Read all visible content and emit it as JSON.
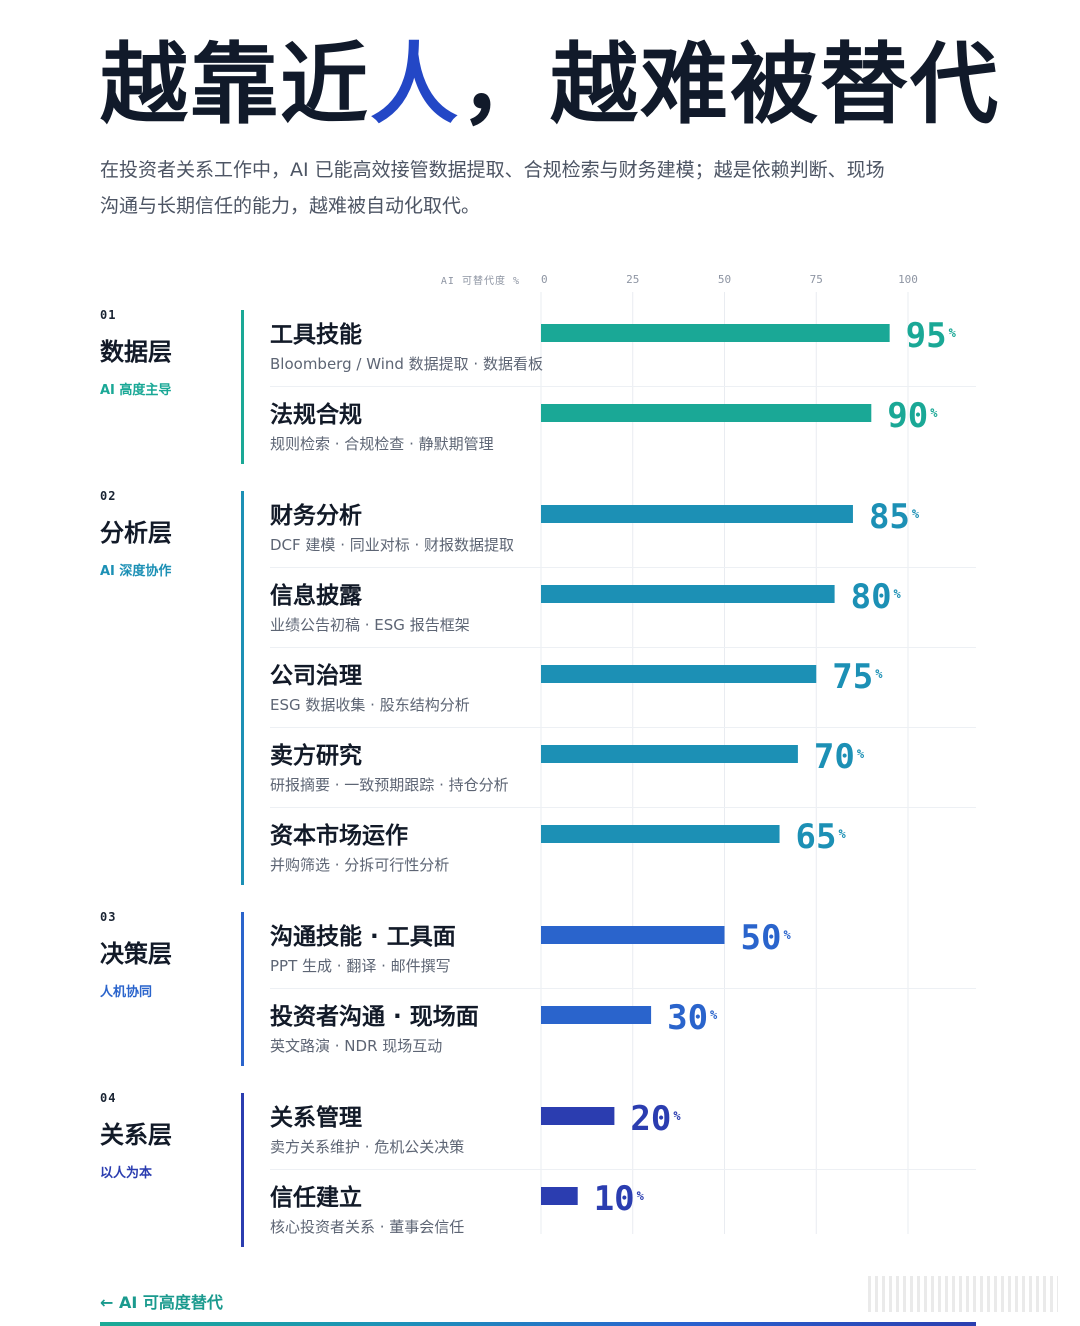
{
  "header": {
    "title_prefix": "越靠近",
    "title_highlight": "人",
    "title_suffix": "，越难被替代",
    "subtitle": "在投资者关系工作中，AI 已能高效接管数据提取、合规检索与财务建模；越是依赖判断、现场沟通与长期信任的能力，越难被自动化取代。"
  },
  "chart_data": {
    "type": "bar",
    "orientation": "horizontal",
    "axis_label": "AI 可替代度 %",
    "xlim": [
      0,
      100
    ],
    "ticks": [
      0,
      25,
      50,
      75,
      100
    ],
    "value_suffix": "%",
    "grid": true,
    "tiers": [
      {
        "num": "01",
        "name": "数据层",
        "tag": "AI 高度主导",
        "color": "#1aa896"
      },
      {
        "num": "02",
        "name": "分析层",
        "tag": "AI 深度协作",
        "color": "#1c90b5"
      },
      {
        "num": "03",
        "name": "决策层",
        "tag": "人机协同",
        "color": "#2a64cc"
      },
      {
        "num": "04",
        "name": "关系层",
        "tag": "以人为本",
        "color": "#2b3db0"
      }
    ],
    "rows": [
      {
        "tier": 0,
        "title": "工具技能",
        "desc": "Bloomberg / Wind 数据提取 · 数据看板",
        "value": 95
      },
      {
        "tier": 0,
        "title": "法规合规",
        "desc": "规则检索 · 合规检查 · 静默期管理",
        "value": 90
      },
      {
        "tier": 1,
        "title": "财务分析",
        "desc": "DCF 建模 · 同业对标 · 财报数据提取",
        "value": 85
      },
      {
        "tier": 1,
        "title": "信息披露",
        "desc": "业绩公告初稿 · ESG 报告框架",
        "value": 80
      },
      {
        "tier": 1,
        "title": "公司治理",
        "desc": "ESG 数据收集 · 股东结构分析",
        "value": 75
      },
      {
        "tier": 1,
        "title": "卖方研究",
        "desc": "研报摘要 · 一致预期跟踪 · 持仓分析",
        "value": 70
      },
      {
        "tier": 1,
        "title": "资本市场运作",
        "desc": "并购筛选 · 分拆可行性分析",
        "value": 65
      },
      {
        "tier": 2,
        "title": "沟通技能 · 工具面",
        "desc": "PPT 生成 · 翻译 · 邮件撰写",
        "value": 50
      },
      {
        "tier": 2,
        "title": "投资者沟通 · 现场面",
        "desc": "英文路演 · NDR 现场互动",
        "value": 30
      },
      {
        "tier": 3,
        "title": "关系管理",
        "desc": "卖方关系维护 · 危机公关决策",
        "value": 20
      },
      {
        "tier": 3,
        "title": "信任建立",
        "desc": "核心投资者关系 · 董事会信任",
        "value": 10
      }
    ]
  },
  "footer": {
    "legend_left": "← AI 可高度替代"
  }
}
